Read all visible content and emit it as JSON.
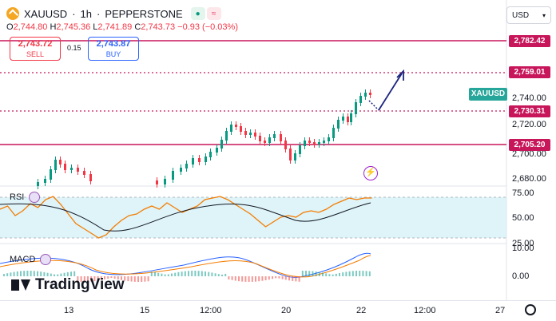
{
  "header": {
    "symbol": "XAUUSD",
    "separator1": "·",
    "interval": "1h",
    "separator2": "·",
    "broker": "PEPPERSTONE",
    "ohlc": {
      "o_label": "O",
      "o": "2,744.80",
      "h_label": "H",
      "h": "2,745.36",
      "l_label": "L",
      "l": "2,741.89",
      "c_label": "C",
      "c": "2,743.73",
      "change": "−0.93 (−0.03%)"
    }
  },
  "trade": {
    "sell_price": "2,743.72",
    "sell_label": "SELL",
    "spread": "0.15",
    "buy_price": "2,743.87",
    "buy_label": "BUY"
  },
  "currency": {
    "label": "USD"
  },
  "price_axis": {
    "ticks": [
      "2,740.00",
      "2,720.00",
      "2,700.00",
      "2,680.00"
    ],
    "tags": {
      "level1": "2,782.42",
      "level2": "2,759.01",
      "level3": "2,730.31",
      "level4": "2,705.20"
    },
    "symbol_tag": "XAUUSD"
  },
  "rsi": {
    "label": "RSI",
    "ticks": [
      "75.00",
      "50.00",
      "25.00"
    ]
  },
  "macd": {
    "label": "MACD",
    "ticks": [
      "10.00",
      "0.00"
    ]
  },
  "time_axis": [
    "13",
    "15",
    "12:00",
    "20",
    "22",
    "12:00",
    "27"
  ],
  "brand": "TradingView",
  "colors": {
    "level_line": "#c8165b",
    "up": "#089981",
    "down": "#f23645",
    "rsi_line": "#f57c00",
    "rsi_ma": "#131722",
    "rsi_band": "#d6f1f7",
    "macd_line": "#2962ff",
    "signal_line": "#f57c00",
    "arrow": "#1a237e"
  },
  "icons": [
    "logo-icon",
    "eye-icon",
    "lightning-icon",
    "settings-icon",
    "chevron-down-icon"
  ]
}
